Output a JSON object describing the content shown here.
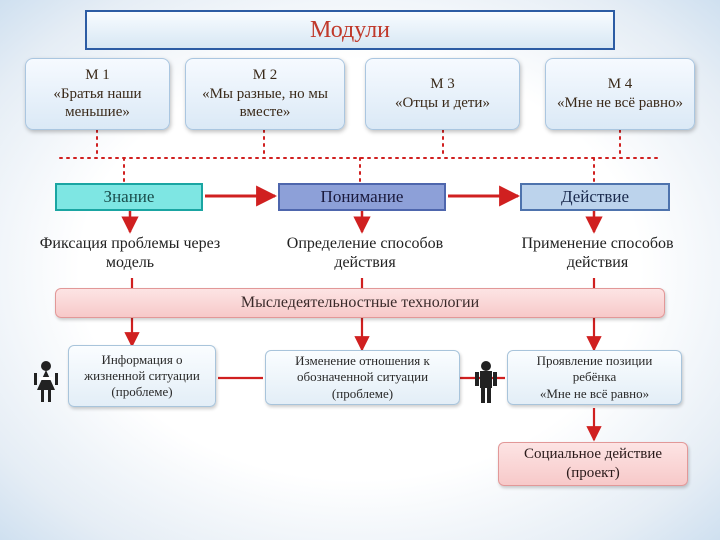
{
  "type": "flowchart",
  "background_gradient": [
    "#ffffff",
    "#e5edf5",
    "#cfe0f0"
  ],
  "title": {
    "text": "Модули",
    "color": "#c0392b",
    "border_color": "#2c5ca4",
    "bg_top": "#f8fcff",
    "bg_bottom": "#d7e7f4",
    "fontsize": 24
  },
  "modules": [
    {
      "label": "М 1\n«Братья наши меньшие»"
    },
    {
      "label": "М 2\n«Мы разные, но мы вместе»"
    },
    {
      "label": "М 3\n«Отцы и дети»"
    },
    {
      "label": "М 4\n«Мне не всё равно»"
    }
  ],
  "module_style": {
    "bg": [
      "#f6faff",
      "#dbe9f6"
    ],
    "border": "#aac6e0",
    "radius": 8,
    "text_color": "#3a2a1a",
    "fontsize": 15
  },
  "competences": [
    {
      "label": "Знание",
      "bg": "#7ee6e3",
      "border": "#1aa5a2",
      "text_color": "#1a4d4c"
    },
    {
      "label": "Понимание",
      "bg": "#8da0d8",
      "border": "#4e66ad",
      "text_color": "#1a1a3d"
    },
    {
      "label": "Действие",
      "bg": "#bcd3ec",
      "border": "#4e73ad",
      "text_color": "#1a2a4d"
    }
  ],
  "descriptions": [
    "Фиксация проблемы через модель",
    "Определение способов действия",
    "Применение способов действия"
  ],
  "banner": "Мыследеятельностные технологии",
  "bottom_boxes": [
    "Информация о жизненной ситуации (проблеме)",
    "Изменение отношения к обозначенной ситуации (проблеме)",
    "Проявление позиции ребёнка\n«Мне не всё равно»"
  ],
  "social": "Социальное действие (проект)",
  "arrows": {
    "red_solid": "#d02020",
    "red_dotted": "#d02020",
    "dot_radius": 1.4,
    "dot_gap": 4
  },
  "person_colors": {
    "girl_dress": "#222222",
    "boy_body": "#222222",
    "head": "#222222"
  }
}
